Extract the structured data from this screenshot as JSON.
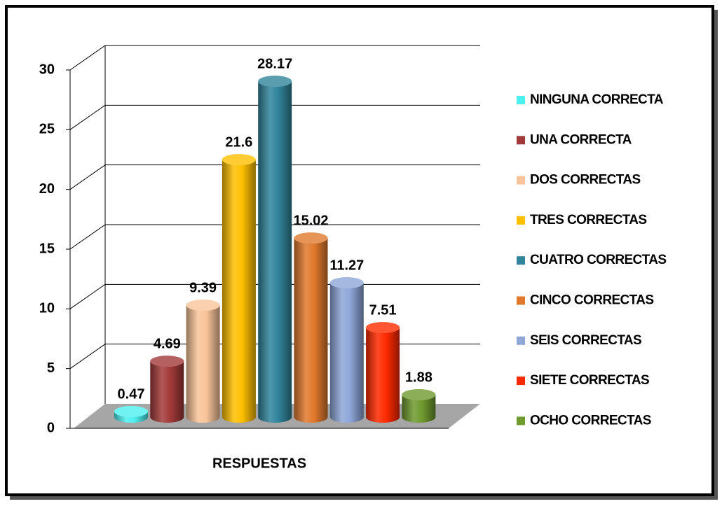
{
  "chart_data": {
    "type": "bar3d",
    "categories": [
      "RESPUESTAS"
    ],
    "ylim": [
      0,
      30
    ],
    "yticks": [
      0,
      5,
      10,
      15,
      20,
      25,
      30
    ],
    "grid": true,
    "legend": "right",
    "series": [
      {
        "name": "NINGUNA CORRECTA",
        "color": "#4ff0f0",
        "values": [
          0.47
        ]
      },
      {
        "name": "UNA CORRECTA",
        "color": "#a33a3a",
        "values": [
          4.69
        ]
      },
      {
        "name": "DOS CORRECTAS",
        "color": "#f9c49a",
        "values": [
          9.39
        ]
      },
      {
        "name": "TRES CORRECTAS",
        "color": "#ffc000",
        "values": [
          21.6
        ]
      },
      {
        "name": "CUATRO CORRECTAS",
        "color": "#31849b",
        "values": [
          28.17
        ]
      },
      {
        "name": "CINCO CORRECTAS",
        "color": "#e0792d",
        "values": [
          15.02
        ]
      },
      {
        "name": "SEIS CORRECTAS",
        "color": "#8ea6d8",
        "values": [
          11.27
        ]
      },
      {
        "name": "SIETE CORRECTAS",
        "color": "#ff2a00",
        "values": [
          7.51
        ]
      },
      {
        "name": "OCHO CORRECTAS",
        "color": "#6f9a2e",
        "values": [
          1.88
        ]
      }
    ]
  }
}
